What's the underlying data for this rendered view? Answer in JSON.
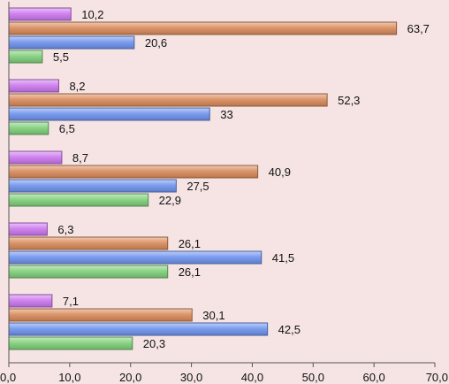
{
  "chart_data": {
    "type": "bar",
    "orientation": "horizontal",
    "title": "",
    "xlabel": "",
    "ylabel": "",
    "xlim": [
      0,
      70
    ],
    "x_ticks": [
      "0,0",
      "10,0",
      "20,0",
      "30,0",
      "40,0",
      "50,0",
      "60,0",
      "70,0"
    ],
    "grid": false,
    "legend": "none",
    "groups": 5,
    "series": [
      {
        "color": "#cc77ee",
        "values": [
          10.2,
          8.2,
          8.7,
          6.3,
          7.1
        ],
        "labels": [
          "10,2",
          "8,2",
          "8,7",
          "6,3",
          "7,1"
        ]
      },
      {
        "color": "#d98a5a",
        "values": [
          63.7,
          52.3,
          40.9,
          26.1,
          30.1
        ],
        "labels": [
          "63,7",
          "52,3",
          "40,9",
          "26,1",
          "30,1"
        ]
      },
      {
        "color": "#6f93ee",
        "values": [
          20.6,
          33,
          27.5,
          41.5,
          42.5
        ],
        "labels": [
          "20,6",
          "33",
          "27,5",
          "41,5",
          "42,5"
        ]
      },
      {
        "color": "#7fcf7a",
        "values": [
          5.5,
          6.5,
          22.9,
          26.1,
          20.3
        ],
        "labels": [
          "5,5",
          "6,5",
          "22,9",
          "26,1",
          "20,3"
        ]
      }
    ]
  }
}
